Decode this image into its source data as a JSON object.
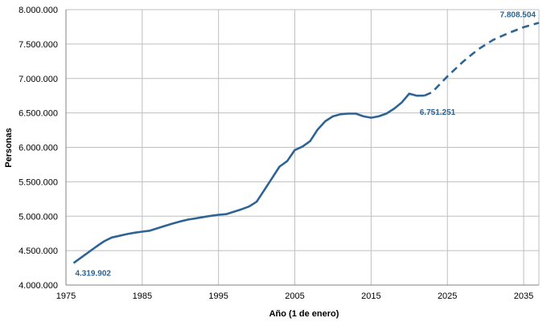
{
  "chart_data": {
    "type": "line",
    "title": "",
    "xlabel": "Año (1 de enero)",
    "ylabel": "Personas",
    "xlim": [
      1975,
      2037
    ],
    "ylim": [
      4000000,
      8000000
    ],
    "x_ticks": [
      1975,
      1985,
      1995,
      2005,
      2015,
      2025,
      2035
    ],
    "x_tick_labels": [
      "1975",
      "1985",
      "1995",
      "2005",
      "2015",
      "2025",
      "2035"
    ],
    "y_ticks": [
      4000000,
      4500000,
      5000000,
      5500000,
      6000000,
      6500000,
      7000000,
      7500000,
      8000000
    ],
    "y_tick_labels": [
      "4.000.000",
      "4.500.000",
      "5.000.000",
      "5.500.000",
      "6.000.000",
      "6.500.000",
      "7.000.000",
      "7.500.000",
      "8.000.000"
    ],
    "grid": true,
    "legend": "none",
    "line_color": "#2e6494",
    "label_color": "#2e6494",
    "series": [
      {
        "style": "solid",
        "x": [
          1976,
          1977,
          1978,
          1979,
          1980,
          1981,
          1982,
          1983,
          1984,
          1985,
          1986,
          1987,
          1988,
          1989,
          1990,
          1991,
          1992,
          1993,
          1994,
          1995,
          1996,
          1997,
          1998,
          1999,
          2000,
          2001,
          2002,
          2003,
          2004,
          2005,
          2006,
          2007,
          2008,
          2009,
          2010,
          2011,
          2012,
          2013,
          2014,
          2015,
          2016,
          2017,
          2018,
          2019,
          2020,
          2021,
          2022
        ],
        "y": [
          4319902,
          4400000,
          4480000,
          4560000,
          4635000,
          4690000,
          4715000,
          4740000,
          4760000,
          4775000,
          4790000,
          4825000,
          4860000,
          4893000,
          4925000,
          4950000,
          4968000,
          4988000,
          5005000,
          5020000,
          5030000,
          5065000,
          5100000,
          5140000,
          5210000,
          5380000,
          5550000,
          5720000,
          5800000,
          5960000,
          6010000,
          6090000,
          6260000,
          6380000,
          6450000,
          6480000,
          6490000,
          6490000,
          6450000,
          6430000,
          6450000,
          6490000,
          6560000,
          6650000,
          6780000,
          6750000,
          6751251
        ]
      },
      {
        "style": "dashed",
        "x": [
          2022,
          2023,
          2025,
          2027,
          2029,
          2031,
          2033,
          2035,
          2037
        ],
        "y": [
          6751251,
          6800000,
          7030000,
          7240000,
          7420000,
          7560000,
          7660000,
          7745000,
          7808504
        ]
      }
    ],
    "annotations": [
      {
        "text": "4.319.902",
        "x": 1976,
        "y": 4319902,
        "anchor": "below-right"
      },
      {
        "text": "6.751.251",
        "x": 2022,
        "y": 6751251,
        "anchor": "below"
      },
      {
        "text": "7.808.504",
        "x": 2037,
        "y": 7808504,
        "anchor": "above-left"
      }
    ]
  }
}
